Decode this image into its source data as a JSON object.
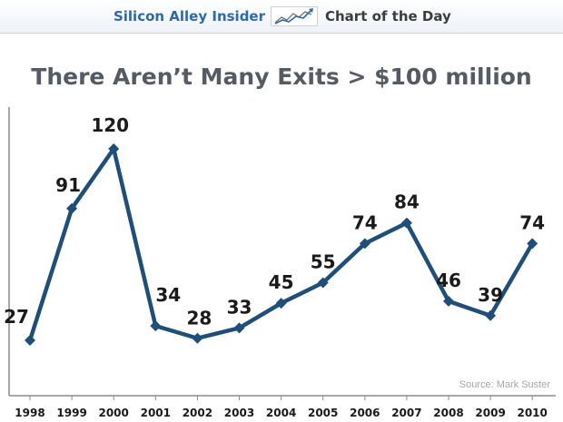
{
  "banner": {
    "brand": "Silicon Alley Insider",
    "logo_icon": "rising-chart-arrow-icon",
    "label": "Chart of the Day"
  },
  "source": "Source: Mark Suster",
  "chart_data": {
    "type": "line",
    "title": "There Aren’t Many Exits > $100 million",
    "xlabel": "",
    "ylabel": "",
    "categories": [
      "1998",
      "1999",
      "2000",
      "2001",
      "2002",
      "2003",
      "2004",
      "2005",
      "2006",
      "2007",
      "2008",
      "2009",
      "2010"
    ],
    "values": [
      27,
      91,
      120,
      34,
      28,
      33,
      45,
      55,
      74,
      84,
      46,
      39,
      74
    ],
    "data_labels": true,
    "marker": "diamond",
    "ylim": [
      0,
      135
    ],
    "grid": false,
    "line_color": "#1f4e79",
    "label_color": "#1a1a1a",
    "axis_color": "#8c8c8c"
  }
}
